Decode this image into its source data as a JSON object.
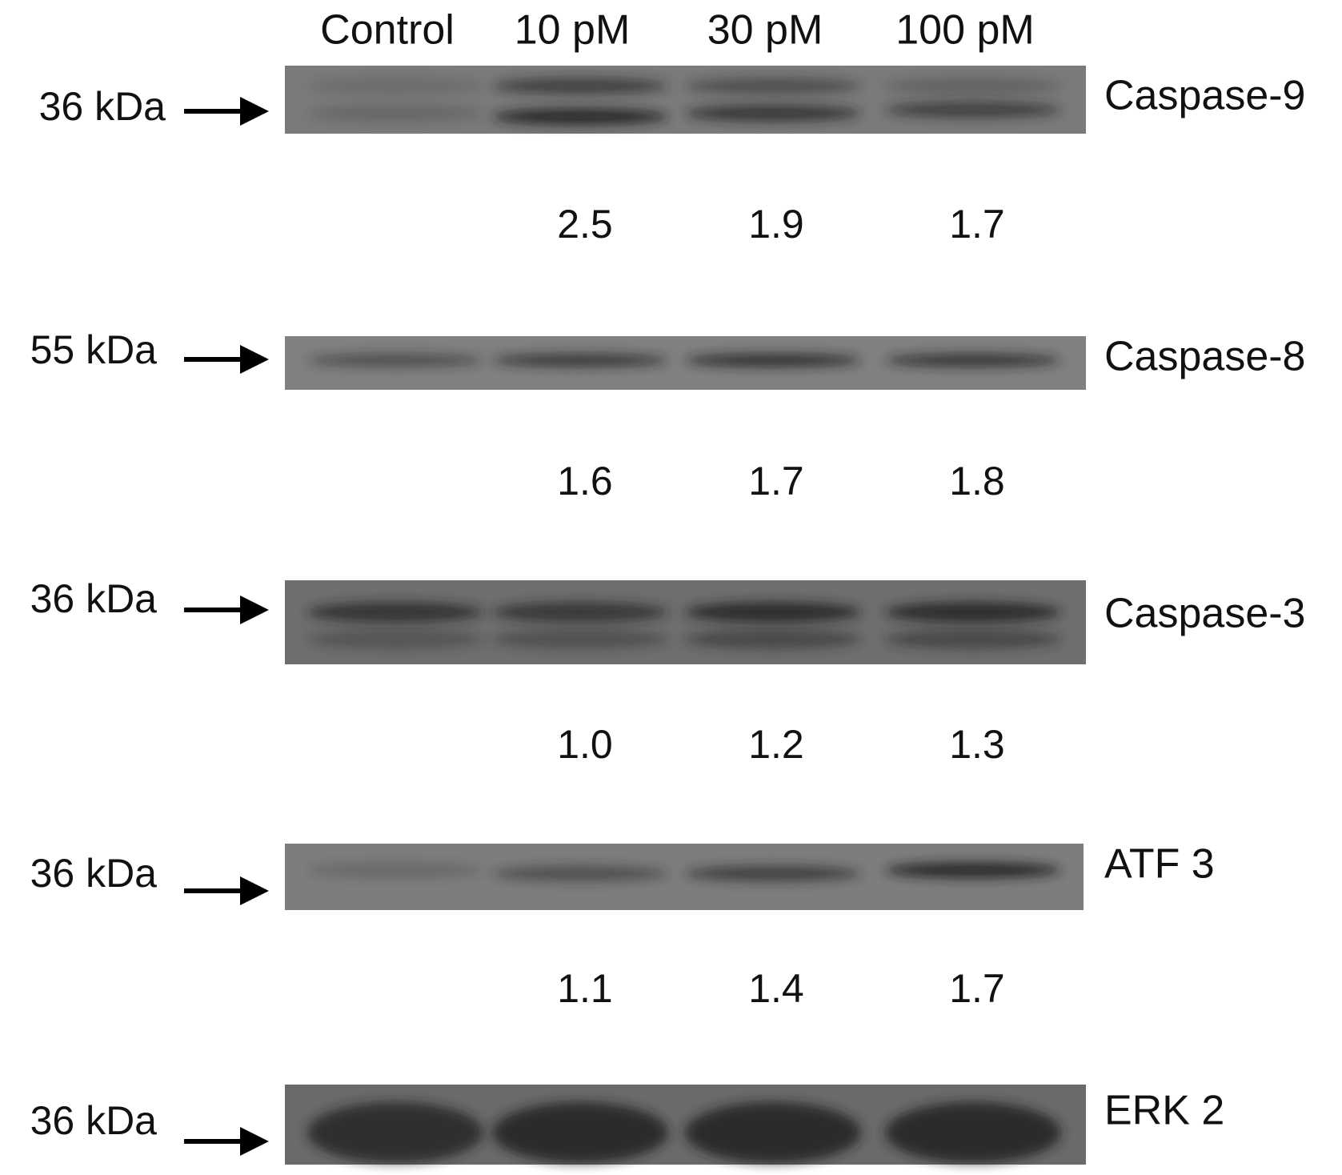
{
  "lanes": [
    "Control",
    "10 pM",
    "30 pM",
    "100 pM"
  ],
  "blots": [
    {
      "marker": "36 kDa",
      "protein": "Caspase-9",
      "ratios": [
        "2.5",
        "1.9",
        "1.7"
      ]
    },
    {
      "marker": "55 kDa",
      "protein": "Caspase-8",
      "ratios": [
        "1.6",
        "1.7",
        "1.8"
      ]
    },
    {
      "marker": "36 kDa",
      "protein": "Caspase-3",
      "ratios": [
        "1.0",
        "1.2",
        "1.3"
      ]
    },
    {
      "marker": "36 kDa",
      "protein": "ATF 3",
      "ratios": [
        "1.1",
        "1.4",
        "1.7"
      ]
    },
    {
      "marker": "36 kDa",
      "protein": "ERK 2"
    }
  ]
}
